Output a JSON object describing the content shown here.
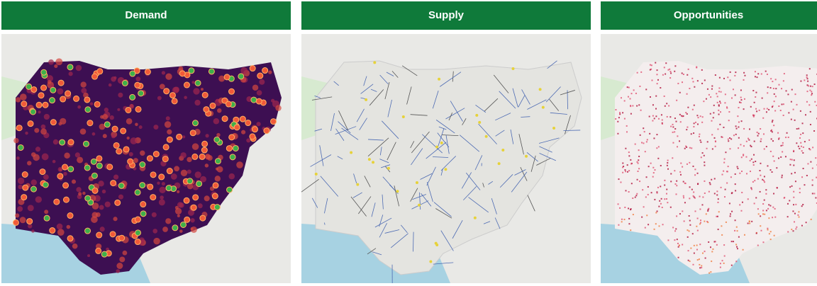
{
  "panels": [
    {
      "title": "Demand"
    },
    {
      "title": "Supply"
    },
    {
      "title": "Opportunities"
    }
  ]
}
